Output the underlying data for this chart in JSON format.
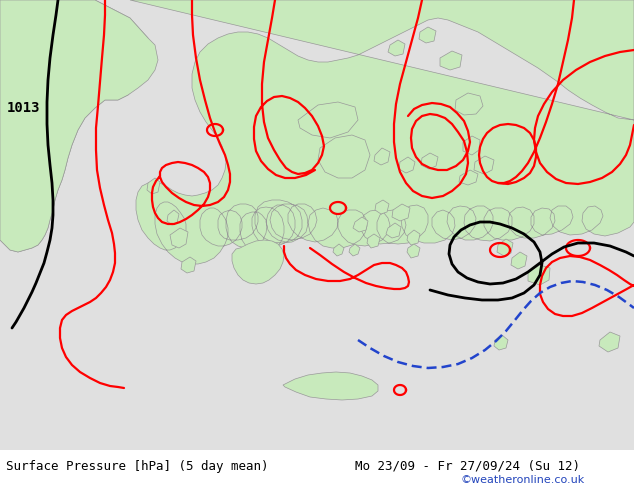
{
  "title_left": "Surface Pressure [hPa] (5 day mean)",
  "title_right": "Mo 23/09 - Fr 27/09/24 (Su 12)",
  "credit": "©weatheronline.co.uk",
  "bg_color": "#e0e0e0",
  "land_color": "#c8eabc",
  "coast_color": "#999999",
  "label_1013": "1013",
  "label_fontsize": 10,
  "footer_fontsize": 9,
  "credit_color": "#2244bb",
  "footer_bg": "#ffffff"
}
